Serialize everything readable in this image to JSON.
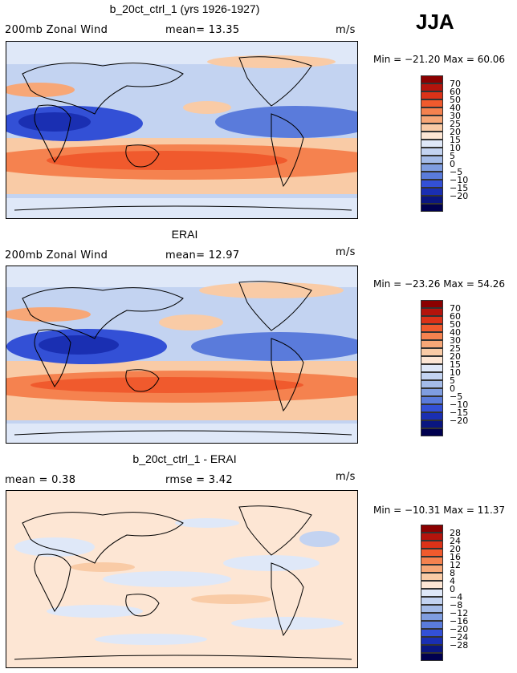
{
  "season": "JJA",
  "panels": [
    {
      "title": "b_20ct_ctrl_1 (yrs 1926-1927)",
      "left_label": "200mb Zonal Wind",
      "center_label": "mean=  13.35",
      "units": "m/s",
      "min_max": "Min = −21.20 Max =  60.06",
      "colorbar": [
        "70",
        "60",
        "50",
        "40",
        "30",
        "25",
        "20",
        "15",
        "10",
        "5",
        "0",
        "−5",
        "−10",
        "−15",
        "−20"
      ],
      "colors": [
        "#8b0000",
        "#b4140c",
        "#dc3218",
        "#f05a2d",
        "#f5824f",
        "#f7a777",
        "#f9cba6",
        "#fde6d4",
        "#dfe8f8",
        "#c3d3f1",
        "#a4bbe8",
        "#7f9de0",
        "#5a7bdb",
        "#3350d6",
        "#1a2fb2",
        "#0a1680",
        "#00004f"
      ]
    },
    {
      "title": "ERAI",
      "left_label": "200mb Zonal Wind",
      "center_label": "mean=  12.97",
      "units": "m/s",
      "min_max": "Min = −23.26 Max =  54.26",
      "colorbar": [
        "70",
        "60",
        "50",
        "40",
        "30",
        "25",
        "20",
        "15",
        "10",
        "5",
        "0",
        "−5",
        "−10",
        "−15",
        "−20"
      ],
      "colors": [
        "#8b0000",
        "#b4140c",
        "#dc3218",
        "#f05a2d",
        "#f5824f",
        "#f7a777",
        "#f9cba6",
        "#fde6d4",
        "#dfe8f8",
        "#c3d3f1",
        "#a4bbe8",
        "#7f9de0",
        "#5a7bdb",
        "#3350d6",
        "#1a2fb2",
        "#0a1680",
        "#00004f"
      ]
    },
    {
      "title": "b_20ct_ctrl_1 - ERAI",
      "left_label": "mean =    0.38",
      "center_label": "rmse =    3.42",
      "units": "m/s",
      "min_max": "Min = −10.31 Max =  11.37",
      "colorbar": [
        "28",
        "24",
        "20",
        "16",
        "12",
        "8",
        "4",
        "0",
        "−4",
        "−8",
        "−12",
        "−16",
        "−20",
        "−24",
        "−28"
      ],
      "colors": [
        "#8b0000",
        "#b4140c",
        "#dc3218",
        "#f05a2d",
        "#f5824f",
        "#f7a777",
        "#f9cba6",
        "#fde6d4",
        "#dfe8f8",
        "#c3d3f1",
        "#a4bbe8",
        "#7f9de0",
        "#5a7bdb",
        "#3350d6",
        "#1a2fb2",
        "#0a1680",
        "#00004f"
      ]
    }
  ]
}
